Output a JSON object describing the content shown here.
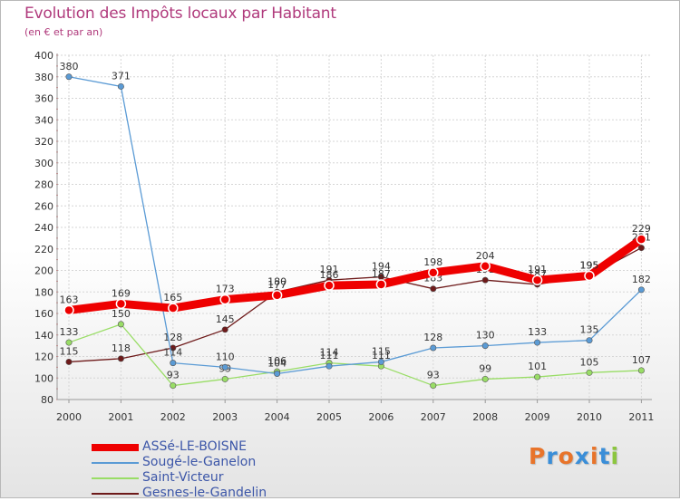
{
  "title": "Evolution des Impôts locaux par Habitant",
  "subtitle": "(en € et par an)",
  "brand": "Proxiti",
  "chart_data": {
    "type": "line",
    "title": "Evolution des Impôts locaux par Habitant",
    "subtitle": "(en € et par an)",
    "xlabel": "",
    "ylabel": "",
    "ylim": [
      80,
      400
    ],
    "yticks": [
      80,
      100,
      120,
      140,
      160,
      180,
      200,
      220,
      240,
      260,
      280,
      300,
      320,
      340,
      360,
      380,
      400
    ],
    "categories": [
      "2000",
      "2001",
      "2002",
      "2003",
      "2004",
      "2005",
      "2006",
      "2007",
      "2008",
      "2009",
      "2010",
      "2011"
    ],
    "grid": true,
    "legend_position": "bottom-left",
    "series": [
      {
        "name": "Gesnes-le-Gandelin",
        "color": "#6e1a1a",
        "values": [
          115,
          118,
          128,
          145,
          180,
          191,
          194,
          183,
          191,
          187,
          195,
          221
        ],
        "labels": [
          "115",
          "118",
          "128",
          "145",
          "180",
          "191",
          "194",
          "183",
          "191",
          "187",
          "195",
          "221"
        ]
      },
      {
        "name": "Saint-Victeur",
        "color": "#99dd66",
        "values": [
          133,
          150,
          93,
          99,
          106,
          114,
          111,
          93,
          99,
          101,
          105,
          107
        ],
        "labels": [
          "133",
          "150",
          "93",
          "99",
          "106",
          "114",
          "111",
          "93",
          "99",
          "101",
          "105",
          "107"
        ]
      },
      {
        "name": "Sougé-le-Ganelon",
        "color": "#5b9bd5",
        "values": [
          380,
          371,
          114,
          110,
          104,
          111,
          115,
          128,
          130,
          133,
          135,
          182
        ],
        "labels": [
          "380",
          "371",
          "114",
          "110",
          "104",
          "111",
          "115",
          "128",
          "130",
          "133",
          "135",
          "182"
        ]
      },
      {
        "name": "ASSé-LE-BOISNE",
        "color": "#ee0000",
        "values": [
          163,
          169,
          165,
          173,
          177,
          186,
          187,
          198,
          204,
          191,
          195,
          229
        ],
        "labels": [
          "163",
          "169",
          "165",
          "173",
          "177",
          "186",
          "187",
          "198",
          "204",
          "191",
          "195",
          "229"
        ]
      }
    ],
    "legend": [
      {
        "name": "ASSé-LE-BOISNE",
        "color": "#ee0000",
        "thick": true
      },
      {
        "name": "Sougé-le-Ganelon",
        "color": "#5b9bd5",
        "thick": false
      },
      {
        "name": "Saint-Victeur",
        "color": "#99dd66",
        "thick": false
      },
      {
        "name": "Gesnes-le-Gandelin",
        "color": "#6e1a1a",
        "thick": false
      }
    ]
  }
}
